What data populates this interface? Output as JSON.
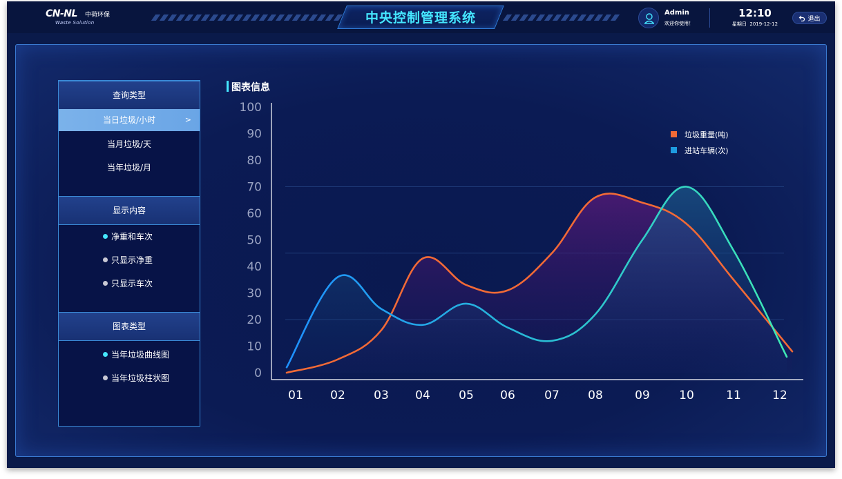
{
  "header": {
    "logo_mark": "CN-NL",
    "logo_cn": "中荷环保",
    "logo_sub": "Waste Solution",
    "title": "中央控制管理系统",
    "user_name": "Admin",
    "user_welcome": "欢迎你使用！",
    "time": "12:10",
    "weekday": "星期日",
    "date": "2019-12-12",
    "logout_label": "退出"
  },
  "menu": {
    "query_header": "查询类型",
    "query_items": [
      "当日垃圾/小时",
      "当月垃圾/天",
      "当年垃圾/月"
    ],
    "query_chevron": ">",
    "display_header": "显示内容",
    "display_items": [
      "净重和车次",
      "只显示净重",
      "只显示车次"
    ],
    "charttype_header": "图表类型",
    "charttype_items": [
      "当年垃圾曲线图",
      "当年垃圾柱状图"
    ]
  },
  "chart_title": "图表信息",
  "colors": {
    "accent": "#45e6ff",
    "series_weight": "#f26a36",
    "series_vehicles": "#1e90ff",
    "series_vehicles_end": "#3ee8b4"
  },
  "chart_data": {
    "type": "area",
    "categories": [
      "01",
      "02",
      "03",
      "04",
      "05",
      "06",
      "07",
      "08",
      "09",
      "10",
      "11",
      "12"
    ],
    "ylim": [
      0,
      100
    ],
    "yticks": [
      0,
      10,
      20,
      30,
      40,
      50,
      60,
      70,
      80,
      90,
      100
    ],
    "grid": "horizontal at 20, 45, 70",
    "legend_position": "top-right",
    "series": [
      {
        "name": "垃圾重量(吨)",
        "values": [
          0,
          5,
          16,
          43,
          33,
          31,
          45,
          66,
          64,
          56,
          35,
          8
        ]
      },
      {
        "name": "进站车辆(次)",
        "values": [
          2,
          36,
          24,
          18,
          26,
          17,
          12,
          22,
          50,
          70,
          46,
          6
        ]
      }
    ]
  }
}
